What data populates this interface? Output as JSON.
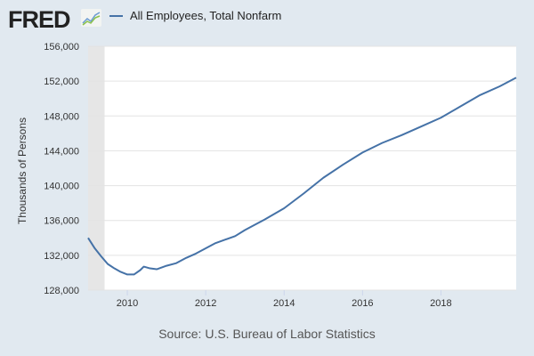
{
  "header": {
    "logo": "FRED",
    "legend_label": "All Employees, Total Nonfarm"
  },
  "colors": {
    "series": "#4572a7",
    "recession": "#e6e6e6",
    "background": "#e1e9f0"
  },
  "chart_data": {
    "type": "line",
    "title": "All Employees, Total Nonfarm",
    "xlabel": "",
    "ylabel": "Thousands of Persons",
    "source": "Source: U.S. Bureau of Labor Statistics",
    "xlim": [
      2009.0,
      2019.92
    ],
    "ylim": [
      128000,
      156000
    ],
    "yticks": [
      128000,
      132000,
      136000,
      140000,
      144000,
      148000,
      152000,
      156000
    ],
    "ytick_labels": [
      "128,000",
      "132,000",
      "136,000",
      "140,000",
      "144,000",
      "148,000",
      "152,000",
      "156,000"
    ],
    "xticks": [
      2010,
      2012,
      2014,
      2016,
      2018
    ],
    "xtick_labels": [
      "2010",
      "2012",
      "2014",
      "2016",
      "2018"
    ],
    "grid": true,
    "recessions": [
      [
        2009.0,
        2009.42
      ]
    ],
    "series": [
      {
        "name": "All Employees, Total Nonfarm",
        "x": [
          2009.0,
          2009.17,
          2009.33,
          2009.5,
          2009.67,
          2009.83,
          2010.0,
          2010.17,
          2010.33,
          2010.42,
          2010.58,
          2010.75,
          2011.0,
          2011.25,
          2011.5,
          2011.75,
          2012.0,
          2012.25,
          2012.5,
          2012.75,
          2013.0,
          2013.5,
          2014.0,
          2014.5,
          2015.0,
          2015.5,
          2016.0,
          2016.5,
          2017.0,
          2017.5,
          2018.0,
          2018.5,
          2019.0,
          2019.5,
          2019.92
        ],
        "y": [
          134000,
          132800,
          131900,
          131000,
          130500,
          130100,
          129800,
          129800,
          130300,
          130700,
          130500,
          130400,
          130800,
          131100,
          131700,
          132200,
          132800,
          133400,
          133800,
          134200,
          134900,
          136100,
          137400,
          139100,
          140900,
          142400,
          143800,
          144900,
          145800,
          146800,
          147800,
          149100,
          150400,
          151400,
          152400
        ]
      }
    ]
  }
}
